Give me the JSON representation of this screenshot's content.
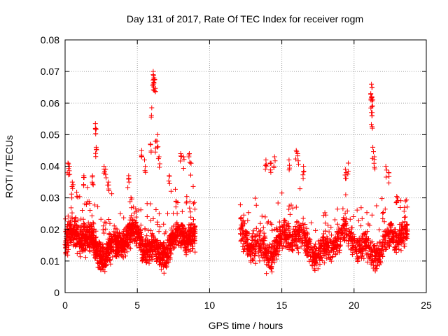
{
  "chart_data": {
    "type": "scatter",
    "title": "Day 131 of 2017, Rate Of TEC Index for receiver rogm",
    "xlabel": "GPS time / hours",
    "ylabel": "ROTI / TECUs",
    "xlim": [
      0,
      25
    ],
    "ylim": [
      0,
      0.08
    ],
    "x_ticks": [
      0,
      5,
      10,
      15,
      20,
      25
    ],
    "x_tick_labels": [
      "0",
      "5",
      "10",
      "15",
      "20",
      "25"
    ],
    "y_ticks": [
      0,
      0.01,
      0.02,
      0.03,
      0.04,
      0.05,
      0.06,
      0.07,
      0.08
    ],
    "y_tick_labels": [
      "0",
      "0.01",
      "0.02",
      "0.03",
      "0.04",
      "0.05",
      "0.06",
      "0.07",
      "0.08"
    ],
    "grid": true,
    "marker": "+",
    "color": "#ff0000",
    "series": [
      {
        "name": "ROTI",
        "segments": [
          {
            "x_start": 0.0,
            "x_end": 9.0,
            "typical_min": 0.006,
            "typical_max": 0.03
          },
          {
            "x_start": 12.1,
            "x_end": 23.7,
            "typical_min": 0.005,
            "typical_max": 0.03
          }
        ],
        "notable_points": [
          {
            "x": 0.2,
            "y": 0.041
          },
          {
            "x": 0.3,
            "y": 0.04
          },
          {
            "x": 0.5,
            "y": 0.035
          },
          {
            "x": 1.3,
            "y": 0.037
          },
          {
            "x": 1.9,
            "y": 0.037
          },
          {
            "x": 2.1,
            "y": 0.0535
          },
          {
            "x": 2.1,
            "y": 0.052
          },
          {
            "x": 2.15,
            "y": 0.046
          },
          {
            "x": 2.7,
            "y": 0.04
          },
          {
            "x": 2.8,
            "y": 0.039
          },
          {
            "x": 3.0,
            "y": 0.035
          },
          {
            "x": 4.4,
            "y": 0.037
          },
          {
            "x": 5.3,
            "y": 0.045
          },
          {
            "x": 5.5,
            "y": 0.042
          },
          {
            "x": 5.9,
            "y": 0.047
          },
          {
            "x": 6.0,
            "y": 0.0585
          },
          {
            "x": 6.1,
            "y": 0.07
          },
          {
            "x": 6.1,
            "y": 0.069
          },
          {
            "x": 6.15,
            "y": 0.068
          },
          {
            "x": 6.1,
            "y": 0.066
          },
          {
            "x": 6.2,
            "y": 0.0675
          },
          {
            "x": 6.3,
            "y": 0.048
          },
          {
            "x": 6.4,
            "y": 0.05
          },
          {
            "x": 6.5,
            "y": 0.043
          },
          {
            "x": 7.2,
            "y": 0.037
          },
          {
            "x": 8.0,
            "y": 0.044
          },
          {
            "x": 8.2,
            "y": 0.043
          },
          {
            "x": 8.6,
            "y": 0.044
          },
          {
            "x": 8.7,
            "y": 0.041
          },
          {
            "x": 13.9,
            "y": 0.042
          },
          {
            "x": 14.2,
            "y": 0.041
          },
          {
            "x": 14.5,
            "y": 0.043
          },
          {
            "x": 15.5,
            "y": 0.042
          },
          {
            "x": 16.0,
            "y": 0.045
          },
          {
            "x": 16.1,
            "y": 0.044
          },
          {
            "x": 16.5,
            "y": 0.04
          },
          {
            "x": 19.4,
            "y": 0.039
          },
          {
            "x": 19.6,
            "y": 0.041
          },
          {
            "x": 21.2,
            "y": 0.066
          },
          {
            "x": 21.25,
            "y": 0.065
          },
          {
            "x": 21.2,
            "y": 0.062
          },
          {
            "x": 21.3,
            "y": 0.061
          },
          {
            "x": 21.2,
            "y": 0.057
          },
          {
            "x": 21.25,
            "y": 0.056
          },
          {
            "x": 21.3,
            "y": 0.046
          },
          {
            "x": 21.4,
            "y": 0.043
          },
          {
            "x": 22.2,
            "y": 0.04
          },
          {
            "x": 22.4,
            "y": 0.038
          },
          {
            "x": 23.0,
            "y": 0.03
          },
          {
            "x": 23.5,
            "y": 0.027
          }
        ]
      }
    ]
  }
}
